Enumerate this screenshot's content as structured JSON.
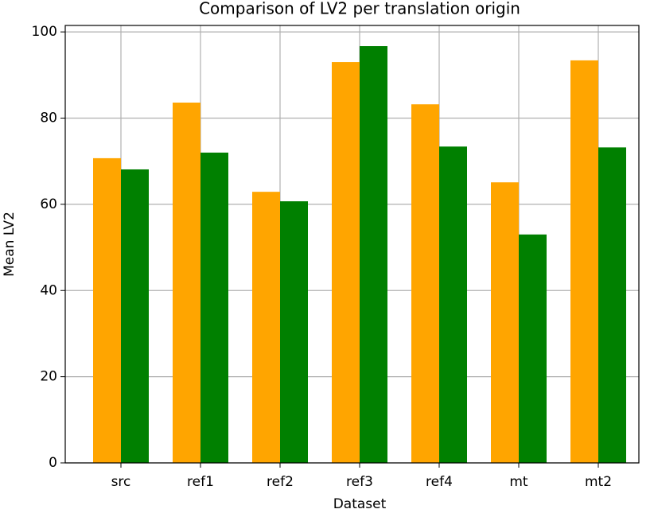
{
  "chart_data": {
    "type": "bar",
    "title": "Comparison of LV2 per translation origin",
    "x_label": "Dataset",
    "y_label": "Mean LV2",
    "categories": [
      "src",
      "ref1",
      "ref2",
      "ref3",
      "ref4",
      "mt",
      "mt2"
    ],
    "series": [
      {
        "color": "#ffa500",
        "values": [
          70.7,
          83.6,
          62.9,
          93.0,
          83.2,
          65.1,
          93.4
        ]
      },
      {
        "color": "#008000",
        "values": [
          68.1,
          72.0,
          60.7,
          96.7,
          73.4,
          53.0,
          73.2
        ]
      }
    ],
    "ylim": [
      0,
      101.5
    ],
    "yticks": [
      0,
      20,
      40,
      60,
      80,
      100
    ],
    "grid": true
  }
}
